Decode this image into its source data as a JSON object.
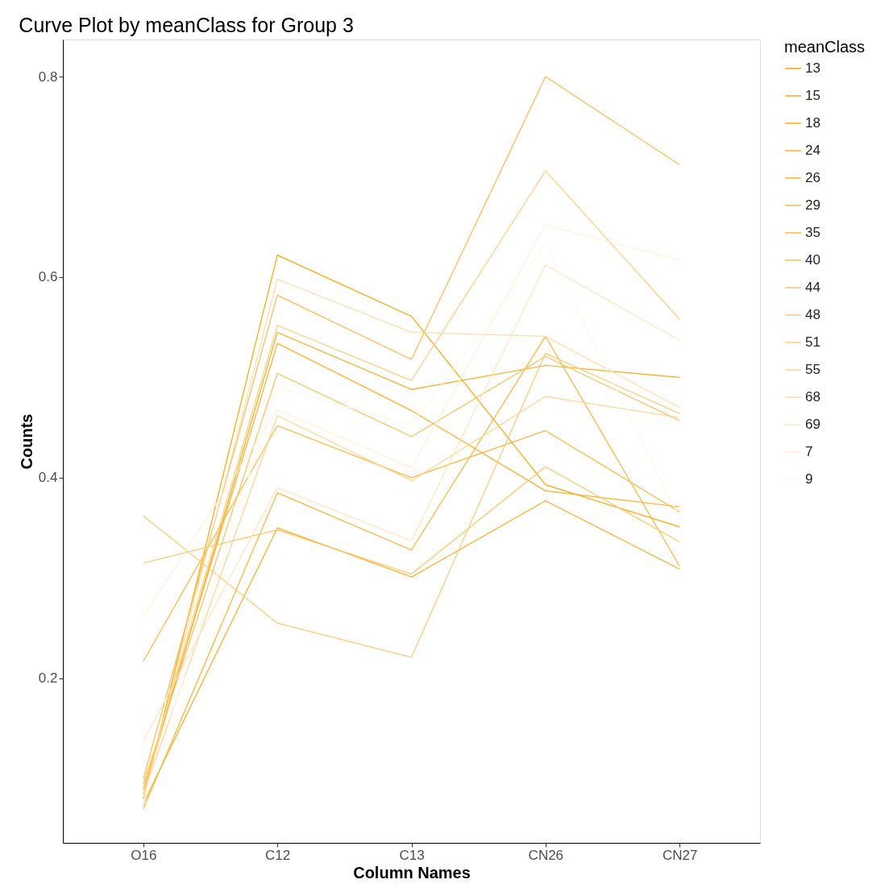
{
  "chart_data": {
    "type": "line",
    "title": "Curve Plot by meanClass for Group 3",
    "xlabel": "Column Names",
    "ylabel": "Counts",
    "legend_title": "meanClass",
    "legend": "right",
    "grid": false,
    "marker": "none",
    "line_style": "solid",
    "categories": [
      "O16",
      "C12",
      "C13",
      "CN26",
      "CN27"
    ],
    "ylim": [
      0.036,
      0.837
    ],
    "yticks": [
      {
        "value": 0.2,
        "label": "0.2"
      },
      {
        "value": 0.4,
        "label": "0.4"
      },
      {
        "value": 0.6,
        "label": "0.6"
      },
      {
        "value": 0.8,
        "label": "0.8"
      }
    ],
    "series": [
      {
        "name": "13",
        "color": "#ffa600",
        "values": [
          0.08,
          0.622,
          0.561,
          0.393,
          0.351
        ]
      },
      {
        "name": "15",
        "color": "#ffa810",
        "values": [
          0.085,
          0.545,
          0.488,
          0.512,
          0.5
        ]
      },
      {
        "name": "18",
        "color": "#ffaa1a",
        "values": [
          0.075,
          0.35,
          0.301,
          0.377,
          0.309
        ]
      },
      {
        "name": "24",
        "color": "#ffae26",
        "values": [
          0.09,
          0.534,
          0.467,
          0.387,
          0.371
        ]
      },
      {
        "name": "26",
        "color": "#ffb232",
        "values": [
          0.07,
          0.385,
          0.328,
          0.541,
          0.312
        ]
      },
      {
        "name": "29",
        "color": "#ffb63e",
        "values": [
          0.217,
          0.452,
          0.4,
          0.447,
          0.366
        ]
      },
      {
        "name": "35",
        "color": "#ffb94a",
        "values": [
          0.1,
          0.582,
          0.518,
          0.8,
          0.712
        ]
      },
      {
        "name": "40",
        "color": "#ffbd56",
        "values": [
          0.095,
          0.504,
          0.441,
          0.521,
          0.457
        ]
      },
      {
        "name": "44",
        "color": "#ffc463",
        "values": [
          0.315,
          0.348,
          0.304,
          0.411,
          0.336
        ]
      },
      {
        "name": "48",
        "color": "#ffc870",
        "values": [
          0.362,
          0.255,
          0.221,
          0.524,
          0.464
        ]
      },
      {
        "name": "51",
        "color": "#ffcd7e",
        "values": [
          0.09,
          0.552,
          0.497,
          0.706,
          0.558
        ]
      },
      {
        "name": "55",
        "color": "#ffd38e",
        "values": [
          0.085,
          0.462,
          0.397,
          0.481,
          0.46
        ]
      },
      {
        "name": "68",
        "color": "#ffdca6",
        "values": [
          0.08,
          0.598,
          0.545,
          0.541,
          0.47
        ]
      },
      {
        "name": "69",
        "color": "#ffe4bc",
        "values": [
          0.137,
          0.39,
          0.337,
          0.612,
          0.537
        ]
      },
      {
        "name": "7",
        "color": "#fff0d8",
        "values": [
          0.262,
          0.468,
          0.41,
          0.652,
          0.617
        ]
      },
      {
        "name": "9",
        "color": "#fff6ea",
        "values": [
          0.075,
          0.49,
          0.453,
          0.632,
          0.36
        ]
      }
    ]
  }
}
